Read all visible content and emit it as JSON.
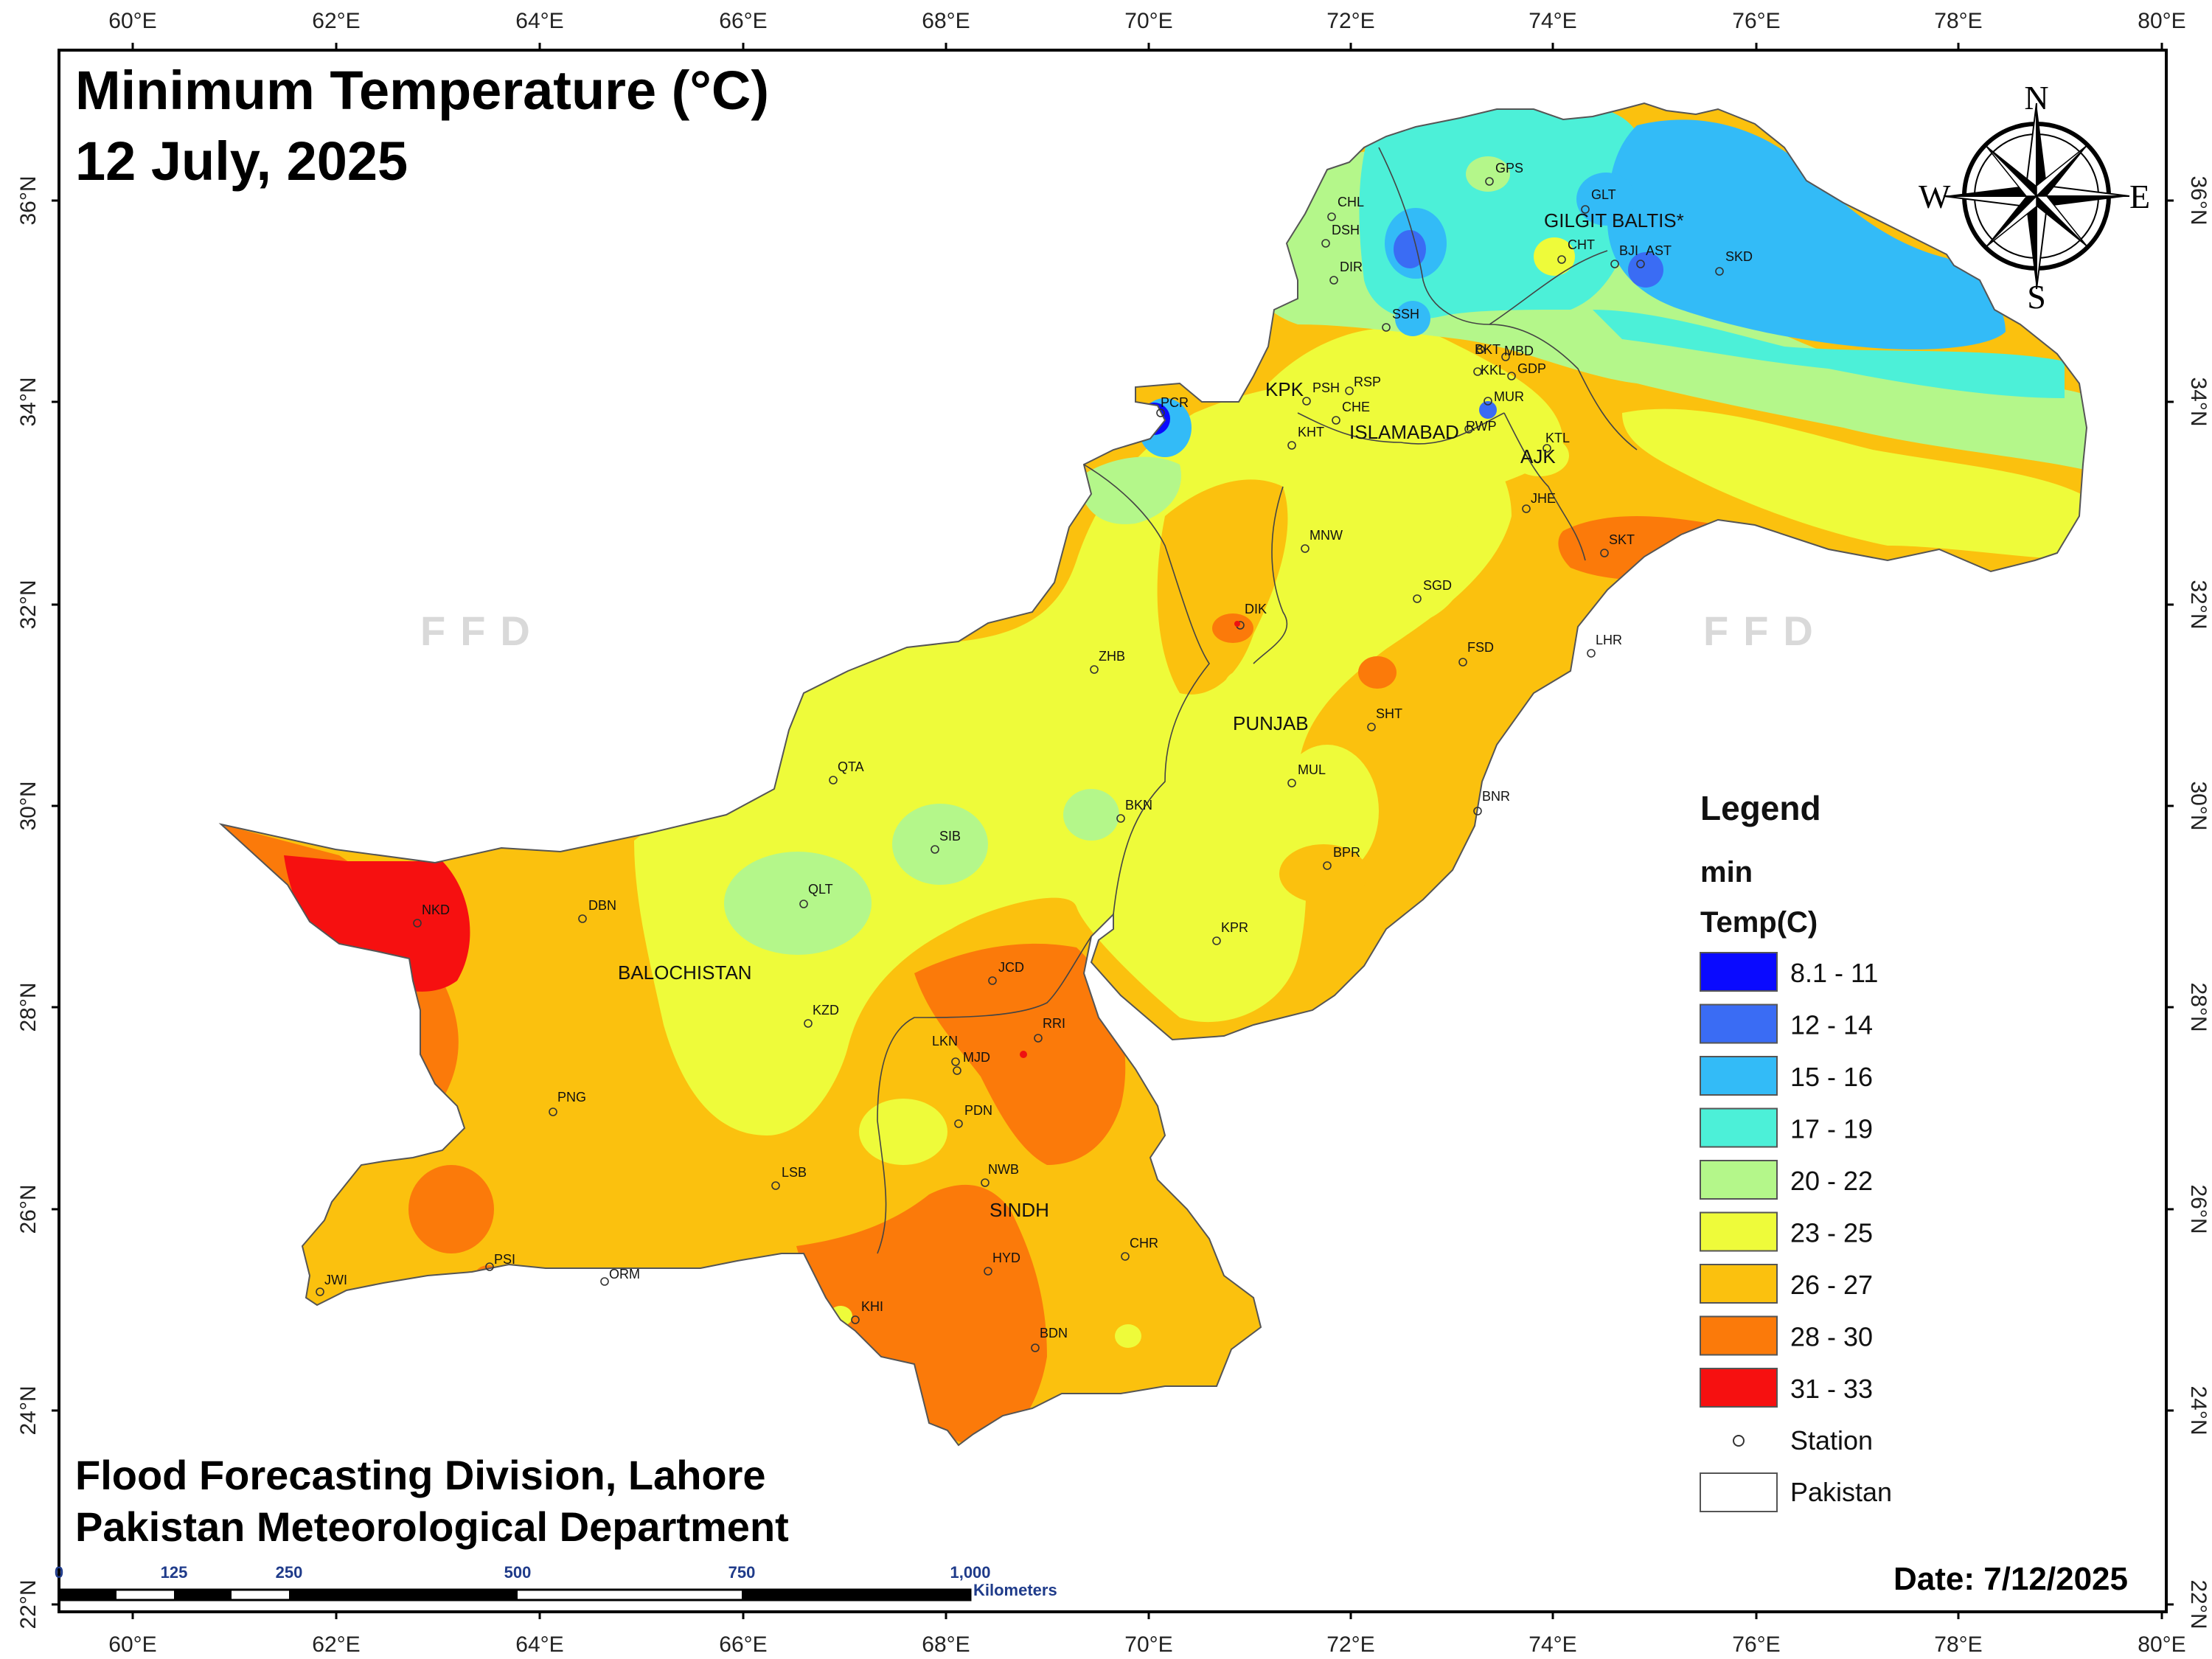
{
  "title": {
    "line1": "Minimum Temperature (°C)",
    "line2": "12 July, 2025"
  },
  "credits": {
    "line1": "Flood Forecasting Division, Lahore",
    "line2": "Pakistan Meteorological Department"
  },
  "date_label": "Date: 7/12/2025",
  "watermark": "FFD",
  "axes": {
    "lon_labels": [
      "60°E",
      "62°E",
      "64°E",
      "66°E",
      "68°E",
      "70°E",
      "72°E",
      "74°E",
      "76°E",
      "78°E",
      "80°E"
    ],
    "lat_labels": [
      "36°N",
      "34°N",
      "32°N",
      "30°N",
      "28°N",
      "26°N",
      "24°N",
      "22°N"
    ]
  },
  "compass": {
    "n": "N",
    "s": "S",
    "e": "E",
    "w": "W"
  },
  "legend": {
    "title": "Legend",
    "field": "min",
    "unit": "Temp(C)",
    "classes": [
      {
        "label": "8.1 - 11",
        "color": "#0a0aff"
      },
      {
        "label": "12 - 14",
        "color": "#3a6cf4"
      },
      {
        "label": "15 - 16",
        "color": "#33bbf7"
      },
      {
        "label": "17 - 19",
        "color": "#4cf0d8"
      },
      {
        "label": "20 - 22",
        "color": "#b4f78a"
      },
      {
        "label": "23 - 25",
        "color": "#eefb3a"
      },
      {
        "label": "26 - 27",
        "color": "#fbc10e"
      },
      {
        "label": "28 - 30",
        "color": "#fb7a0a"
      },
      {
        "label": "31 - 33",
        "color": "#f61010"
      }
    ],
    "station_label": "Station",
    "pakistan_label": "Pakistan"
  },
  "scale_bar": {
    "labels": [
      "0",
      "125",
      "250",
      "500",
      "750",
      "1,000"
    ],
    "units": "Kilometers"
  },
  "regions": {
    "balochistan": "BALOCHISTAN",
    "punjab": "PUNJAB",
    "sindh": "SINDH",
    "kpk": "KPK",
    "islamabad": "ISLAMABAD",
    "ajk": "AJK",
    "gilgit": "GILGIT BALTIS*"
  },
  "stations": {
    "chl": "CHL",
    "dsh": "DSH",
    "dir": "DIR",
    "gps": "GPS",
    "glt": "GLT",
    "cht": "CHT",
    "bji": "BJI",
    "ast": "AST",
    "skd": "SKD",
    "ssh": "SSH",
    "bkt": "BKT",
    "mbd": "MBD",
    "kkl": "KKL",
    "gdp": "GDP",
    "mur": "MUR",
    "psh": "PSH",
    "rsp": "RSP",
    "che": "CHE",
    "kht": "KHT",
    "rwp": "RWP",
    "ktl": "KTL",
    "pcr": "PCR",
    "jhe": "JHE",
    "skt": "SKT",
    "mnw": "MNW",
    "sgd": "SGD",
    "dik": "DIK",
    "lhr": "LHR",
    "fsd": "FSD",
    "zhb": "ZHB",
    "sht": "SHT",
    "qta": "QTA",
    "mul": "MUL",
    "bkn": "BKN",
    "bnr": "BNR",
    "sib": "SIB",
    "bpr": "BPR",
    "qlt": "QLT",
    "dbn": "DBN",
    "nkd": "NKD",
    "kpr": "KPR",
    "jcd": "JCD",
    "kzd": "KZD",
    "rri": "RRI",
    "lkn": "LKN",
    "mjd": "MJD",
    "png": "PNG",
    "pdn": "PDN",
    "lsb": "LSB",
    "nwb": "NWB",
    "hyd": "HYD",
    "chr": "CHR",
    "psi": "PSI",
    "orm": "ORM",
    "jwi": "JWI",
    "khi": "KHI",
    "bdn": "BDN"
  }
}
